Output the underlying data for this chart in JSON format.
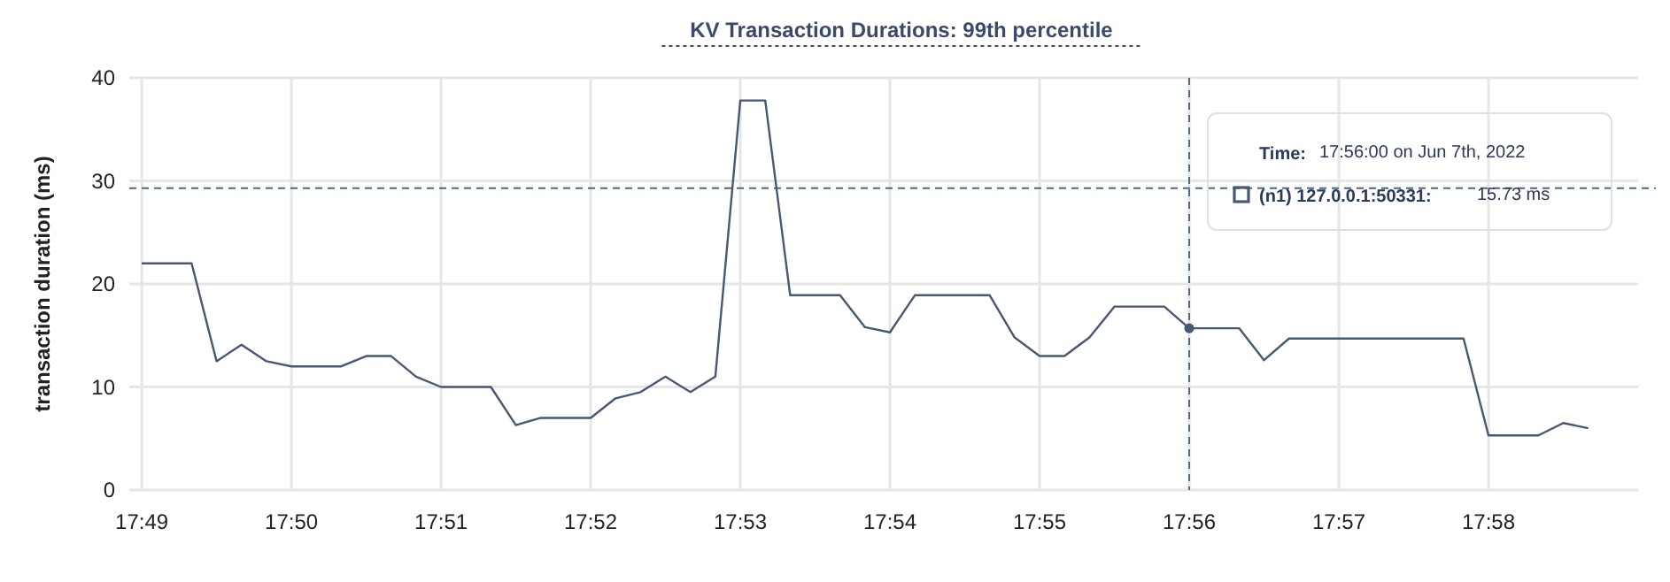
{
  "chart_data": {
    "type": "line",
    "title": "KV Transaction Durations: 99th percentile",
    "ylabel": "transaction duration (ms)",
    "x": [
      "2022-06-07T17:49:00",
      "2022-06-07T17:49:10",
      "2022-06-07T17:49:20",
      "2022-06-07T17:49:30",
      "2022-06-07T17:49:40",
      "2022-06-07T17:49:50",
      "2022-06-07T17:50:00",
      "2022-06-07T17:50:10",
      "2022-06-07T17:50:20",
      "2022-06-07T17:50:30",
      "2022-06-07T17:50:40",
      "2022-06-07T17:50:50",
      "2022-06-07T17:51:00",
      "2022-06-07T17:51:10",
      "2022-06-07T17:51:20",
      "2022-06-07T17:51:30",
      "2022-06-07T17:51:40",
      "2022-06-07T17:51:50",
      "2022-06-07T17:52:00",
      "2022-06-07T17:52:10",
      "2022-06-07T17:52:20",
      "2022-06-07T17:52:30",
      "2022-06-07T17:52:40",
      "2022-06-07T17:52:50",
      "2022-06-07T17:53:00",
      "2022-06-07T17:53:10",
      "2022-06-07T17:53:20",
      "2022-06-07T17:53:30",
      "2022-06-07T17:53:40",
      "2022-06-07T17:53:50",
      "2022-06-07T17:54:00",
      "2022-06-07T17:54:10",
      "2022-06-07T17:54:20",
      "2022-06-07T17:54:30",
      "2022-06-07T17:54:40",
      "2022-06-07T17:54:50",
      "2022-06-07T17:55:00",
      "2022-06-07T17:55:10",
      "2022-06-07T17:55:20",
      "2022-06-07T17:55:30",
      "2022-06-07T17:55:40",
      "2022-06-07T17:55:50",
      "2022-06-07T17:56:00",
      "2022-06-07T17:56:10",
      "2022-06-07T17:56:20",
      "2022-06-07T17:56:30",
      "2022-06-07T17:56:40",
      "2022-06-07T17:56:50",
      "2022-06-07T17:57:00",
      "2022-06-07T17:57:10",
      "2022-06-07T17:57:20",
      "2022-06-07T17:57:30",
      "2022-06-07T17:57:40",
      "2022-06-07T17:57:50",
      "2022-06-07T17:58:00",
      "2022-06-07T17:58:10",
      "2022-06-07T17:58:20",
      "2022-06-07T17:58:30",
      "2022-06-07T17:58:40"
    ],
    "series": [
      {
        "name": "(n1) 127.0.0.1:50331:",
        "color": "#475872",
        "values": [
          22,
          22,
          22,
          12.5,
          14.1,
          12.5,
          12,
          12,
          12,
          13,
          13,
          11,
          10,
          10,
          10,
          6.3,
          7,
          7,
          7,
          8.9,
          9.5,
          11,
          9.5,
          11,
          37.8,
          37.8,
          18.9,
          18.9,
          18.9,
          15.8,
          15.3,
          18.9,
          18.9,
          18.9,
          18.9,
          14.8,
          13,
          13,
          14.8,
          17.8,
          17.8,
          17.8,
          15.7,
          15.7,
          15.7,
          12.6,
          14.7,
          14.7,
          14.7,
          14.7,
          14.7,
          14.7,
          14.7,
          14.7,
          5.3,
          5.3,
          5.3,
          6.5,
          6
        ]
      }
    ],
    "xlim": [
      "2022-06-07T17:48:55",
      "2022-06-07T17:59:00"
    ],
    "xticks": [
      {
        "value": "2022-06-07T17:49",
        "label": "17:49"
      },
      {
        "value": "2022-06-07T17:50",
        "label": "17:50"
      },
      {
        "value": "2022-06-07T17:51",
        "label": "17:51"
      },
      {
        "value": "2022-06-07T17:52",
        "label": "17:52"
      },
      {
        "value": "2022-06-07T17:53",
        "label": "17:53"
      },
      {
        "value": "2022-06-07T17:54",
        "label": "17:54"
      },
      {
        "value": "2022-06-07T17:55",
        "label": "17:55"
      },
      {
        "value": "2022-06-07T17:56",
        "label": "17:56"
      },
      {
        "value": "2022-06-07T17:57",
        "label": "17:57"
      },
      {
        "value": "2022-06-07T17:58",
        "label": "17:58"
      }
    ],
    "ylim": [
      0,
      40
    ],
    "yticks": [
      0,
      10,
      20,
      30,
      40
    ],
    "grid": true,
    "marker": "none",
    "line_style": "solid",
    "legend": "top right",
    "ref_lines": [
      {
        "axis": "y",
        "value": 29.3,
        "color": "#4a6a85",
        "line_style": "dashed"
      },
      {
        "axis": "x",
        "value": "2022-06-07T17:56:00",
        "color": "#4a6a85",
        "line_style": "dashed"
      }
    ],
    "annotations": [
      "Time:",
      "17:56:00 on Jun 7th, 2022",
      "15.73 ms"
    ]
  }
}
